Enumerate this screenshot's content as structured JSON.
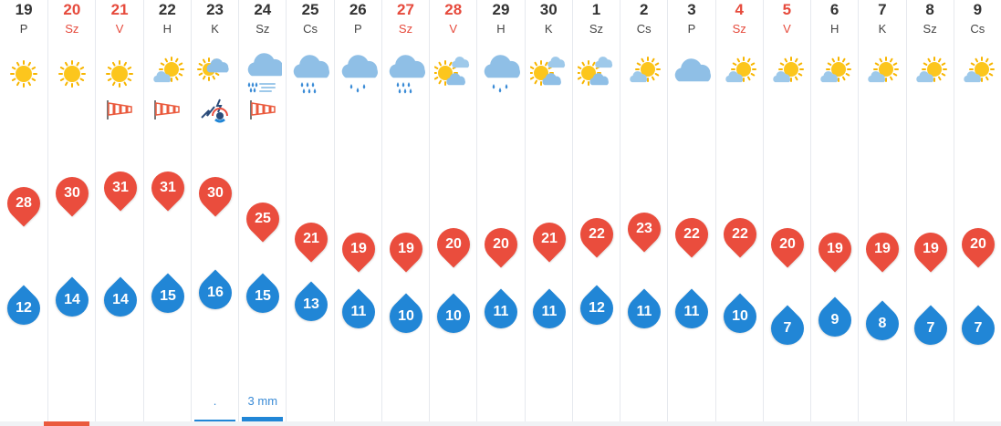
{
  "colors": {
    "high": "#ea4d3d",
    "low": "#2186d6",
    "weekend": "#e64a3c",
    "text": "#333333"
  },
  "days": [
    {
      "num": "19",
      "name": "P",
      "weekend": false,
      "icon": "sun",
      "extra": "",
      "high": "28",
      "low": "12",
      "precip": "",
      "bar": 0
    },
    {
      "num": "20",
      "name": "Sz",
      "weekend": true,
      "icon": "sun",
      "extra": "",
      "high": "30",
      "low": "14",
      "precip": "",
      "bar": 0
    },
    {
      "num": "21",
      "name": "V",
      "weekend": true,
      "icon": "sun",
      "extra": "wind",
      "high": "31",
      "low": "14",
      "precip": "",
      "bar": 0
    },
    {
      "num": "22",
      "name": "H",
      "weekend": false,
      "icon": "partly-sunny",
      "extra": "wind",
      "high": "31",
      "low": "15",
      "precip": "",
      "bar": 0
    },
    {
      "num": "23",
      "name": "K",
      "weekend": false,
      "icon": "sun-cloud-storm",
      "extra": "storm",
      "high": "30",
      "low": "16",
      "precip": ".",
      "bar": 2
    },
    {
      "num": "24",
      "name": "Sz",
      "weekend": false,
      "icon": "cloud-windy-rain",
      "extra": "wind",
      "high": "25",
      "low": "15",
      "precip": "3 mm",
      "bar": 5
    },
    {
      "num": "25",
      "name": "Cs",
      "weekend": false,
      "icon": "cloud-rain",
      "extra": "",
      "high": "21",
      "low": "13",
      "precip": "",
      "bar": 0
    },
    {
      "num": "26",
      "name": "P",
      "weekend": false,
      "icon": "cloud-drizzle",
      "extra": "",
      "high": "19",
      "low": "11",
      "precip": "",
      "bar": 0
    },
    {
      "num": "27",
      "name": "Sz",
      "weekend": true,
      "icon": "cloud-rain",
      "extra": "",
      "high": "19",
      "low": "10",
      "precip": "",
      "bar": 0
    },
    {
      "num": "28",
      "name": "V",
      "weekend": true,
      "icon": "sun-clouds",
      "extra": "",
      "high": "20",
      "low": "10",
      "precip": "",
      "bar": 0
    },
    {
      "num": "29",
      "name": "H",
      "weekend": false,
      "icon": "cloud-drizzle",
      "extra": "",
      "high": "20",
      "low": "11",
      "precip": "",
      "bar": 0
    },
    {
      "num": "30",
      "name": "K",
      "weekend": false,
      "icon": "sun-clouds",
      "extra": "",
      "high": "21",
      "low": "11",
      "precip": "",
      "bar": 0
    },
    {
      "num": "1",
      "name": "Sz",
      "weekend": false,
      "icon": "sun-clouds",
      "extra": "",
      "high": "22",
      "low": "12",
      "precip": "",
      "bar": 0
    },
    {
      "num": "2",
      "name": "Cs",
      "weekend": false,
      "icon": "partly-sunny",
      "extra": "",
      "high": "23",
      "low": "11",
      "precip": "",
      "bar": 0
    },
    {
      "num": "3",
      "name": "P",
      "weekend": false,
      "icon": "cloud",
      "extra": "",
      "high": "22",
      "low": "11",
      "precip": "",
      "bar": 0
    },
    {
      "num": "4",
      "name": "Sz",
      "weekend": true,
      "icon": "partly-sunny",
      "extra": "",
      "high": "22",
      "low": "10",
      "precip": "",
      "bar": 0
    },
    {
      "num": "5",
      "name": "V",
      "weekend": true,
      "icon": "partly-sunny",
      "extra": "",
      "high": "20",
      "low": "7",
      "precip": "",
      "bar": 0
    },
    {
      "num": "6",
      "name": "H",
      "weekend": false,
      "icon": "partly-sunny",
      "extra": "",
      "high": "19",
      "low": "9",
      "precip": "",
      "bar": 0
    },
    {
      "num": "7",
      "name": "K",
      "weekend": false,
      "icon": "partly-sunny",
      "extra": "",
      "high": "19",
      "low": "8",
      "precip": "",
      "bar": 0
    },
    {
      "num": "8",
      "name": "Sz",
      "weekend": false,
      "icon": "partly-sunny",
      "extra": "",
      "high": "19",
      "low": "7",
      "precip": "",
      "bar": 0
    },
    {
      "num": "9",
      "name": "Cs",
      "weekend": false,
      "icon": "partly-sunny",
      "extra": "",
      "high": "20",
      "low": "7",
      "precip": "",
      "bar": 0
    }
  ]
}
